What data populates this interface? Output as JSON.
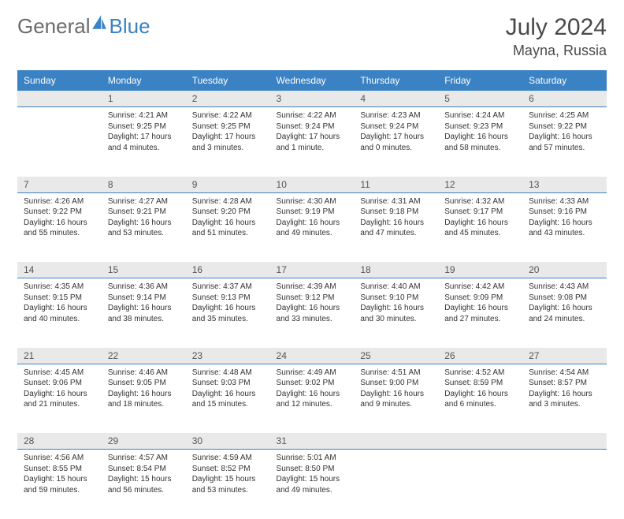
{
  "logo": {
    "general": "General",
    "blue": "Blue"
  },
  "title": "July 2024",
  "location": "Mayna, Russia",
  "colors": {
    "header_bg": "#3b82c4",
    "header_text": "#ffffff",
    "daynum_bg": "#e9e9e9",
    "border": "#3b82c4",
    "body_text": "#333333",
    "title_text": "#4a4a4a"
  },
  "dayNames": [
    "Sunday",
    "Monday",
    "Tuesday",
    "Wednesday",
    "Thursday",
    "Friday",
    "Saturday"
  ],
  "weeks": [
    [
      {
        "num": "",
        "lines": []
      },
      {
        "num": "1",
        "lines": [
          "Sunrise: 4:21 AM",
          "Sunset: 9:25 PM",
          "Daylight: 17 hours",
          "and 4 minutes."
        ]
      },
      {
        "num": "2",
        "lines": [
          "Sunrise: 4:22 AM",
          "Sunset: 9:25 PM",
          "Daylight: 17 hours",
          "and 3 minutes."
        ]
      },
      {
        "num": "3",
        "lines": [
          "Sunrise: 4:22 AM",
          "Sunset: 9:24 PM",
          "Daylight: 17 hours",
          "and 1 minute."
        ]
      },
      {
        "num": "4",
        "lines": [
          "Sunrise: 4:23 AM",
          "Sunset: 9:24 PM",
          "Daylight: 17 hours",
          "and 0 minutes."
        ]
      },
      {
        "num": "5",
        "lines": [
          "Sunrise: 4:24 AM",
          "Sunset: 9:23 PM",
          "Daylight: 16 hours",
          "and 58 minutes."
        ]
      },
      {
        "num": "6",
        "lines": [
          "Sunrise: 4:25 AM",
          "Sunset: 9:22 PM",
          "Daylight: 16 hours",
          "and 57 minutes."
        ]
      }
    ],
    [
      {
        "num": "7",
        "lines": [
          "Sunrise: 4:26 AM",
          "Sunset: 9:22 PM",
          "Daylight: 16 hours",
          "and 55 minutes."
        ]
      },
      {
        "num": "8",
        "lines": [
          "Sunrise: 4:27 AM",
          "Sunset: 9:21 PM",
          "Daylight: 16 hours",
          "and 53 minutes."
        ]
      },
      {
        "num": "9",
        "lines": [
          "Sunrise: 4:28 AM",
          "Sunset: 9:20 PM",
          "Daylight: 16 hours",
          "and 51 minutes."
        ]
      },
      {
        "num": "10",
        "lines": [
          "Sunrise: 4:30 AM",
          "Sunset: 9:19 PM",
          "Daylight: 16 hours",
          "and 49 minutes."
        ]
      },
      {
        "num": "11",
        "lines": [
          "Sunrise: 4:31 AM",
          "Sunset: 9:18 PM",
          "Daylight: 16 hours",
          "and 47 minutes."
        ]
      },
      {
        "num": "12",
        "lines": [
          "Sunrise: 4:32 AM",
          "Sunset: 9:17 PM",
          "Daylight: 16 hours",
          "and 45 minutes."
        ]
      },
      {
        "num": "13",
        "lines": [
          "Sunrise: 4:33 AM",
          "Sunset: 9:16 PM",
          "Daylight: 16 hours",
          "and 43 minutes."
        ]
      }
    ],
    [
      {
        "num": "14",
        "lines": [
          "Sunrise: 4:35 AM",
          "Sunset: 9:15 PM",
          "Daylight: 16 hours",
          "and 40 minutes."
        ]
      },
      {
        "num": "15",
        "lines": [
          "Sunrise: 4:36 AM",
          "Sunset: 9:14 PM",
          "Daylight: 16 hours",
          "and 38 minutes."
        ]
      },
      {
        "num": "16",
        "lines": [
          "Sunrise: 4:37 AM",
          "Sunset: 9:13 PM",
          "Daylight: 16 hours",
          "and 35 minutes."
        ]
      },
      {
        "num": "17",
        "lines": [
          "Sunrise: 4:39 AM",
          "Sunset: 9:12 PM",
          "Daylight: 16 hours",
          "and 33 minutes."
        ]
      },
      {
        "num": "18",
        "lines": [
          "Sunrise: 4:40 AM",
          "Sunset: 9:10 PM",
          "Daylight: 16 hours",
          "and 30 minutes."
        ]
      },
      {
        "num": "19",
        "lines": [
          "Sunrise: 4:42 AM",
          "Sunset: 9:09 PM",
          "Daylight: 16 hours",
          "and 27 minutes."
        ]
      },
      {
        "num": "20",
        "lines": [
          "Sunrise: 4:43 AM",
          "Sunset: 9:08 PM",
          "Daylight: 16 hours",
          "and 24 minutes."
        ]
      }
    ],
    [
      {
        "num": "21",
        "lines": [
          "Sunrise: 4:45 AM",
          "Sunset: 9:06 PM",
          "Daylight: 16 hours",
          "and 21 minutes."
        ]
      },
      {
        "num": "22",
        "lines": [
          "Sunrise: 4:46 AM",
          "Sunset: 9:05 PM",
          "Daylight: 16 hours",
          "and 18 minutes."
        ]
      },
      {
        "num": "23",
        "lines": [
          "Sunrise: 4:48 AM",
          "Sunset: 9:03 PM",
          "Daylight: 16 hours",
          "and 15 minutes."
        ]
      },
      {
        "num": "24",
        "lines": [
          "Sunrise: 4:49 AM",
          "Sunset: 9:02 PM",
          "Daylight: 16 hours",
          "and 12 minutes."
        ]
      },
      {
        "num": "25",
        "lines": [
          "Sunrise: 4:51 AM",
          "Sunset: 9:00 PM",
          "Daylight: 16 hours",
          "and 9 minutes."
        ]
      },
      {
        "num": "26",
        "lines": [
          "Sunrise: 4:52 AM",
          "Sunset: 8:59 PM",
          "Daylight: 16 hours",
          "and 6 minutes."
        ]
      },
      {
        "num": "27",
        "lines": [
          "Sunrise: 4:54 AM",
          "Sunset: 8:57 PM",
          "Daylight: 16 hours",
          "and 3 minutes."
        ]
      }
    ],
    [
      {
        "num": "28",
        "lines": [
          "Sunrise: 4:56 AM",
          "Sunset: 8:55 PM",
          "Daylight: 15 hours",
          "and 59 minutes."
        ]
      },
      {
        "num": "29",
        "lines": [
          "Sunrise: 4:57 AM",
          "Sunset: 8:54 PM",
          "Daylight: 15 hours",
          "and 56 minutes."
        ]
      },
      {
        "num": "30",
        "lines": [
          "Sunrise: 4:59 AM",
          "Sunset: 8:52 PM",
          "Daylight: 15 hours",
          "and 53 minutes."
        ]
      },
      {
        "num": "31",
        "lines": [
          "Sunrise: 5:01 AM",
          "Sunset: 8:50 PM",
          "Daylight: 15 hours",
          "and 49 minutes."
        ]
      },
      {
        "num": "",
        "lines": []
      },
      {
        "num": "",
        "lines": []
      },
      {
        "num": "",
        "lines": []
      }
    ]
  ]
}
